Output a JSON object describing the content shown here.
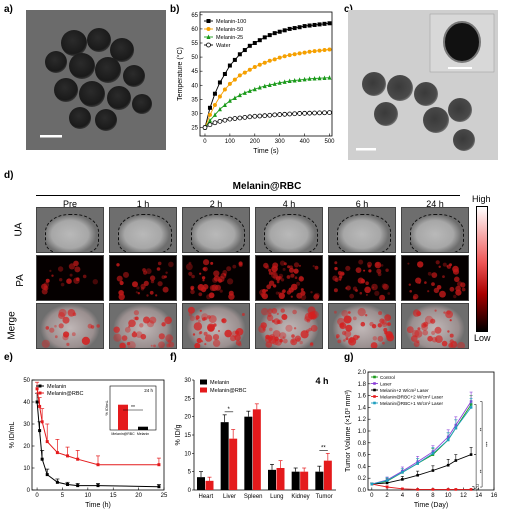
{
  "panels": {
    "a": "a)",
    "b": "b)",
    "c": "c)",
    "d": "d)",
    "e": "e)",
    "f": "f)",
    "g": "g)"
  },
  "d": {
    "title": "Melanin@RBC",
    "timepoints": [
      "Pre",
      "1 h",
      "2 h",
      "4 h",
      "6 h",
      "24 h"
    ],
    "rows": [
      "UA",
      "PA",
      "Merge"
    ],
    "colorbar": {
      "high": "High",
      "low": "Low"
    }
  },
  "chart_data": [
    {
      "id": "b",
      "type": "line",
      "xlabel": "Time (s)",
      "ylabel": "Temperature (°C)",
      "xlim": [
        -20,
        510
      ],
      "ylim": [
        22,
        66
      ],
      "xticks": [
        0,
        100,
        200,
        300,
        400,
        500
      ],
      "yticks": [
        25,
        30,
        35,
        40,
        45,
        50,
        55,
        60,
        65
      ],
      "legend": "top-left",
      "x": [
        0,
        20,
        40,
        60,
        80,
        100,
        120,
        140,
        160,
        180,
        200,
        220,
        240,
        260,
        280,
        300,
        320,
        340,
        360,
        380,
        400,
        420,
        440,
        460,
        480,
        500
      ],
      "series": [
        {
          "name": "Melanin-100",
          "color": "#000000",
          "marker": "filled-square",
          "values": [
            25,
            32,
            37,
            41,
            44,
            47,
            49,
            51,
            52.5,
            54,
            55,
            56,
            57,
            57.8,
            58.5,
            59,
            59.5,
            60,
            60.3,
            60.6,
            61,
            61.2,
            61.4,
            61.6,
            61.8,
            62
          ]
        },
        {
          "name": "Melanin-50",
          "color": "#f5a000",
          "marker": "filled-circle",
          "values": [
            25,
            29.5,
            33,
            36,
            38.5,
            40.5,
            42,
            43.5,
            44.5,
            45.5,
            46.5,
            47.3,
            48,
            48.7,
            49.2,
            49.8,
            50.3,
            50.7,
            51,
            51.3,
            51.6,
            51.9,
            52.1,
            52.3,
            52.5,
            52.7
          ]
        },
        {
          "name": "Melanin-25",
          "color": "#1a9a1a",
          "marker": "filled-triangle",
          "values": [
            25,
            27.5,
            29.5,
            31.5,
            33,
            34.5,
            35.5,
            36.5,
            37.3,
            38,
            38.6,
            39.2,
            39.7,
            40.1,
            40.5,
            40.9,
            41.2,
            41.5,
            41.7,
            41.9,
            42.1,
            42.3,
            42.4,
            42.5,
            42.6,
            42.7
          ]
        },
        {
          "name": "Water",
          "color": "#000000",
          "marker": "open-circle",
          "values": [
            25,
            26,
            26.7,
            27.2,
            27.6,
            28,
            28.2,
            28.4,
            28.6,
            28.8,
            29,
            29.1,
            29.2,
            29.35,
            29.5,
            29.6,
            29.7,
            29.8,
            29.9,
            30,
            30.05,
            30.1,
            30.15,
            30.2,
            30.25,
            30.3
          ]
        }
      ]
    },
    {
      "id": "e",
      "type": "line",
      "xlabel": "Time (h)",
      "ylabel": "% ID/mL",
      "xlim": [
        -1,
        25
      ],
      "ylim": [
        0,
        50
      ],
      "xticks": [
        0,
        5,
        10,
        15,
        20,
        25
      ],
      "yticks": [
        0,
        10,
        20,
        30,
        40,
        50
      ],
      "legend": "top-left",
      "series": [
        {
          "name": "Melanin",
          "color": "#000000",
          "x": [
            0,
            0.5,
            1,
            2,
            4,
            6,
            8,
            12,
            24
          ],
          "values": [
            40,
            27,
            14,
            7,
            3.5,
            2.5,
            2,
            2,
            1.5
          ],
          "errors": [
            4,
            4,
            4,
            2.5,
            1.5,
            1,
            1,
            1,
            1
          ]
        },
        {
          "name": "Melanin@RBC",
          "color": "#e41a1c",
          "x": [
            0,
            0.5,
            1,
            2,
            4,
            6,
            8,
            12,
            24
          ],
          "values": [
            46,
            38,
            31,
            22,
            17,
            15.5,
            14,
            11.5,
            11.5
          ],
          "errors": [
            3,
            4,
            6,
            8,
            6,
            4,
            4,
            4,
            3
          ]
        }
      ],
      "inset": {
        "type": "bar",
        "ylabel": "% ID/mL",
        "annotation": "24 h",
        "significance": "**",
        "categories": [
          "Melanin@RBC",
          "Melanin"
        ],
        "values": [
          11.5,
          1.5
        ],
        "colors": [
          "#e41a1c",
          "#000000"
        ],
        "ylim": [
          0,
          20
        ]
      }
    },
    {
      "id": "f",
      "type": "bar",
      "title": "4 h",
      "ylabel": "% ID/g",
      "categories": [
        "Heart",
        "Liver",
        "Spleen",
        "Lung",
        "Kidney",
        "Tumor"
      ],
      "ylim": [
        0,
        30
      ],
      "yticks": [
        0,
        5,
        10,
        15,
        20,
        25,
        30
      ],
      "legend": "top-left",
      "series": [
        {
          "name": "Melanin",
          "color": "#000000",
          "values": [
            3.5,
            18.5,
            20,
            5.5,
            5,
            5
          ],
          "errors": [
            1.5,
            2,
            1.5,
            1.5,
            1,
            1.5
          ]
        },
        {
          "name": "Melanin@RBC",
          "color": "#e41a1c",
          "values": [
            2.5,
            14,
            22,
            6,
            5,
            8
          ],
          "errors": [
            1,
            2.5,
            1.5,
            2,
            1,
            2
          ]
        }
      ],
      "annotations": [
        {
          "category": "Liver",
          "text": "*"
        },
        {
          "category": "Tumor",
          "text": "**"
        }
      ]
    },
    {
      "id": "g",
      "type": "line",
      "xlabel": "Time (Day)",
      "ylabel": "Tumor Volume (×10³ mm³)",
      "xlim": [
        -0.5,
        16
      ],
      "ylim": [
        0,
        2.0
      ],
      "xticks": [
        0,
        2,
        4,
        6,
        8,
        10,
        12,
        14,
        16
      ],
      "yticks": [
        0.0,
        0.2,
        0.4,
        0.6,
        0.8,
        1.0,
        1.2,
        1.4,
        1.6,
        1.8,
        2.0
      ],
      "legend": "top-left",
      "x": [
        0,
        2,
        4,
        6,
        8,
        10,
        11,
        13
      ],
      "series": [
        {
          "name": "Control",
          "color": "#1a9a1a",
          "values": [
            0.1,
            0.15,
            0.3,
            0.45,
            0.6,
            0.85,
            1.05,
            1.45
          ],
          "errors": [
            0.02,
            0.05,
            0.06,
            0.08,
            0.1,
            0.12,
            0.14,
            0.15
          ]
        },
        {
          "name": "Laser",
          "color": "#8b3fd8",
          "values": [
            0.1,
            0.17,
            0.32,
            0.48,
            0.65,
            0.9,
            1.1,
            1.5
          ],
          "errors": [
            0.02,
            0.05,
            0.07,
            0.09,
            0.1,
            0.12,
            0.14,
            0.16
          ]
        },
        {
          "name": "Melanin+2 W/cm² Laser",
          "color": "#000000",
          "values": [
            0.1,
            0.12,
            0.18,
            0.25,
            0.33,
            0.42,
            0.5,
            0.6
          ],
          "errors": [
            0.02,
            0.04,
            0.05,
            0.07,
            0.08,
            0.1,
            0.1,
            0.12
          ]
        },
        {
          "name": "Melanin@RBC+2 W/cm² Laser",
          "color": "#e41a1c",
          "values": [
            0.1,
            0.05,
            0.02,
            0.01,
            0.01,
            0.01,
            0.01,
            0.01
          ],
          "errors": [
            0.02,
            0.02,
            0.01,
            0.01,
            0.01,
            0.01,
            0.01,
            0.01
          ]
        },
        {
          "name": "Melanin@RBC+1 W/cm² Laser",
          "color": "#1f9fbf",
          "values": [
            0.1,
            0.16,
            0.3,
            0.45,
            0.62,
            0.85,
            1.05,
            1.4
          ],
          "errors": [
            0.02,
            0.05,
            0.06,
            0.08,
            0.1,
            0.12,
            0.14,
            0.15
          ]
        }
      ],
      "significance": [
        "**",
        "***",
        "**",
        "n.s."
      ]
    }
  ]
}
